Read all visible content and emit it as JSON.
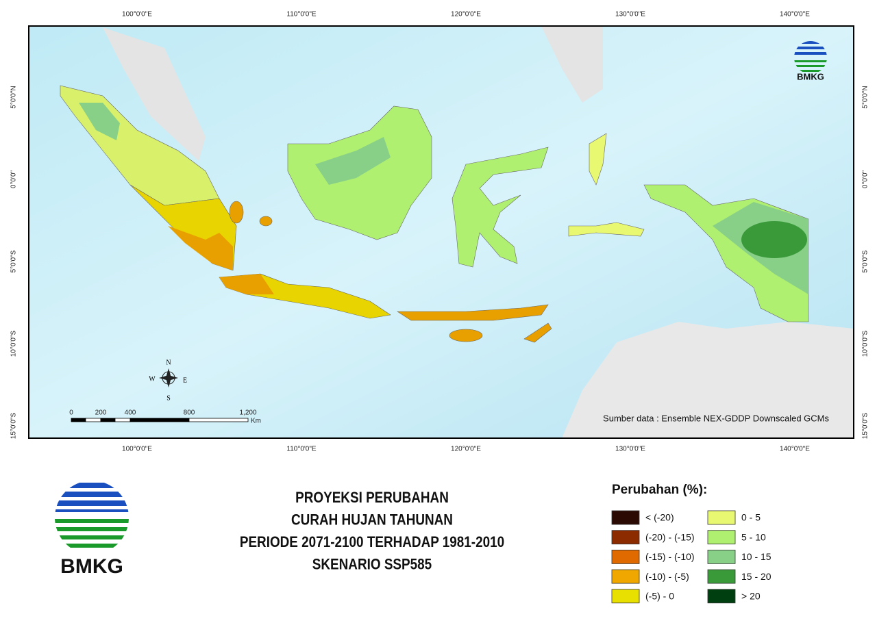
{
  "map": {
    "lon_labels": [
      "100°0'0\"E",
      "110°0'0\"E",
      "120°0'0\"E",
      "130°0'0\"E",
      "140°0'0\"E"
    ],
    "lat_labels": [
      "5°0'0\"N",
      "0°0'0\"",
      "5°0'0\"S",
      "10°0'0\"S",
      "15°0'0\"S"
    ],
    "compass": {
      "n": "N",
      "e": "E",
      "s": "S",
      "w": "W"
    },
    "scale_bar": {
      "ticks": [
        "0",
        "200",
        "400",
        "800",
        "1,200"
      ],
      "unit": "Km"
    },
    "source": "Sumber data : Ensemble NEX-GDDP Downscaled GCMs",
    "logo_text": "BMKG"
  },
  "logo_text": "BMKG",
  "title": [
    "PROYEKSI PERUBAHAN",
    "CURAH HUJAN TAHUNAN",
    "PERIODE 2071-2100 TERHADAP 1981-2010",
    "SKENARIO SSP585"
  ],
  "legend": {
    "title": "Perubahan (%):",
    "items": [
      {
        "label": "< (-20)",
        "color": "#2b0a04"
      },
      {
        "label": "(-20) - (-15)",
        "color": "#8c2a00"
      },
      {
        "label": "(-15) - (-10)",
        "color": "#e06a00"
      },
      {
        "label": "(-10) - (-5)",
        "color": "#f0a800"
      },
      {
        "label": "(-5) - 0",
        "color": "#e8e000"
      },
      {
        "label": "0 - 5",
        "color": "#e8f870"
      },
      {
        "label": "5 - 10",
        "color": "#b0f070"
      },
      {
        "label": "10 - 15",
        "color": "#88d088"
      },
      {
        "label": "15 - 20",
        "color": "#3a9a3a"
      },
      {
        "label": "> 20",
        "color": "#004010"
      }
    ]
  }
}
